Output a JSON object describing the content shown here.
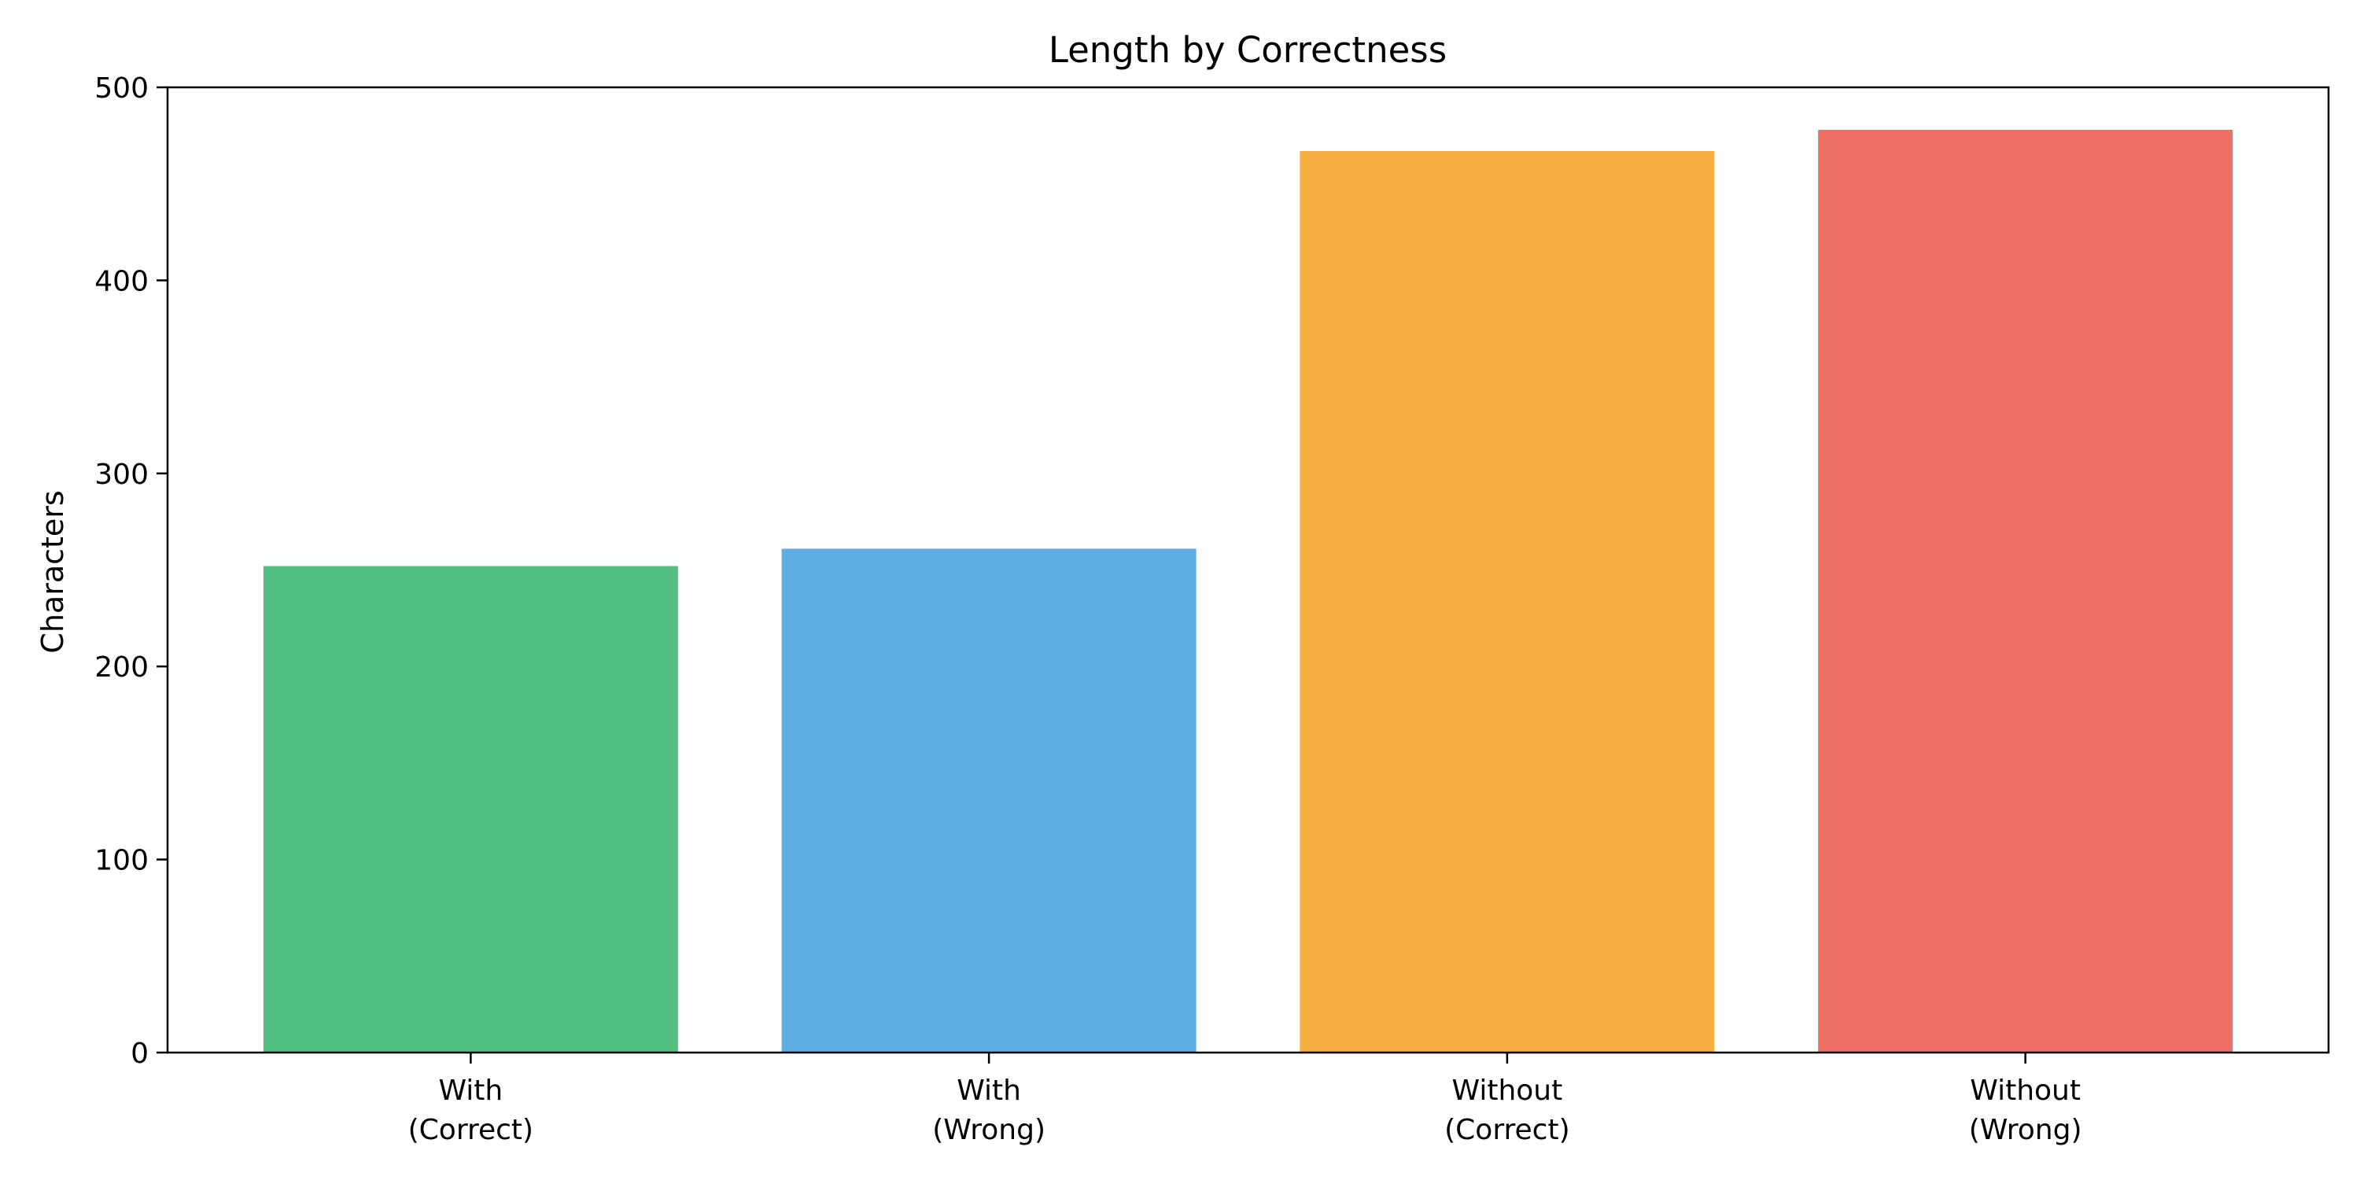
{
  "chart_data": {
    "type": "bar",
    "title": "Length by Correctness",
    "xlabel": "",
    "ylabel": "Characters",
    "ylim": [
      0,
      500
    ],
    "yticks": [
      0,
      100,
      200,
      300,
      400,
      500
    ],
    "categories": [
      [
        "With",
        "(Correct)"
      ],
      [
        "With",
        "(Wrong)"
      ],
      [
        "Without",
        "(Correct)"
      ],
      [
        "Without",
        "(Wrong)"
      ]
    ],
    "values": [
      252,
      261,
      467,
      478
    ],
    "colors": [
      "#52be80",
      "#5dade2",
      "#f5b041",
      "#ec7063"
    ],
    "grid": false,
    "legend": "none"
  }
}
